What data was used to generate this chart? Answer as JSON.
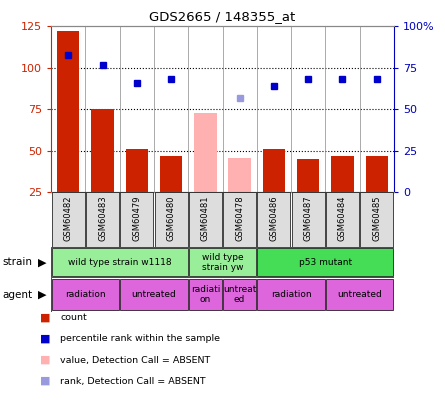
{
  "title": "GDS2665 / 148355_at",
  "samples": [
    "GSM60482",
    "GSM60483",
    "GSM60479",
    "GSM60480",
    "GSM60481",
    "GSM60478",
    "GSM60486",
    "GSM60487",
    "GSM60484",
    "GSM60485"
  ],
  "count_values": [
    122,
    75,
    51,
    47,
    null,
    null,
    51,
    45,
    47,
    47
  ],
  "count_absent": [
    null,
    null,
    null,
    null,
    73,
    46,
    null,
    null,
    null,
    null
  ],
  "rank_values": [
    83,
    77,
    66,
    68,
    null,
    null,
    64,
    68,
    68,
    68
  ],
  "rank_absent": [
    null,
    null,
    null,
    null,
    null,
    57,
    null,
    null,
    null,
    null
  ],
  "ylim_left": [
    25,
    125
  ],
  "ylim_right": [
    0,
    100
  ],
  "yticks_left": [
    25,
    50,
    75,
    100,
    125
  ],
  "yticks_right": [
    0,
    25,
    50,
    75,
    100
  ],
  "ytick_labels_right": [
    "0",
    "25",
    "50",
    "75",
    "100%"
  ],
  "hlines": [
    50,
    75,
    100
  ],
  "strain_groups": [
    {
      "label": "wild type strain w1118",
      "cols": [
        0,
        1,
        2,
        3
      ],
      "color": "#99EE99"
    },
    {
      "label": "wild type\nstrain yw",
      "cols": [
        4,
        5
      ],
      "color": "#99EE99"
    },
    {
      "label": "p53 mutant",
      "cols": [
        6,
        7,
        8,
        9
      ],
      "color": "#44DD55"
    }
  ],
  "agent_groups": [
    {
      "label": "radiation",
      "cols": [
        0,
        1
      ],
      "color": "#DD66DD"
    },
    {
      "label": "untreated",
      "cols": [
        2,
        3
      ],
      "color": "#DD66DD"
    },
    {
      "label": "radiati-\non",
      "cols": [
        4
      ],
      "color": "#DD66DD"
    },
    {
      "label": "untreat-\ned",
      "cols": [
        5
      ],
      "color": "#DD66DD"
    },
    {
      "label": "radiation",
      "cols": [
        6,
        7
      ],
      "color": "#DD66DD"
    },
    {
      "label": "untreated",
      "cols": [
        8,
        9
      ],
      "color": "#DD66DD"
    }
  ],
  "bar_color_red": "#CC2200",
  "bar_color_pink": "#FFB0B0",
  "dot_color_blue": "#0000CC",
  "dot_color_lightblue": "#9999DD",
  "legend_items": [
    {
      "label": "count",
      "color": "#CC2200"
    },
    {
      "label": "percentile rank within the sample",
      "color": "#0000CC"
    },
    {
      "label": "value, Detection Call = ABSENT",
      "color": "#FFB0B0"
    },
    {
      "label": "rank, Detection Call = ABSENT",
      "color": "#9999DD"
    }
  ],
  "left_label_color": "#CC2200",
  "right_label_color": "#0000BB",
  "bg_color": "#FFFFFF",
  "xtick_bg": "#DDDDDD"
}
